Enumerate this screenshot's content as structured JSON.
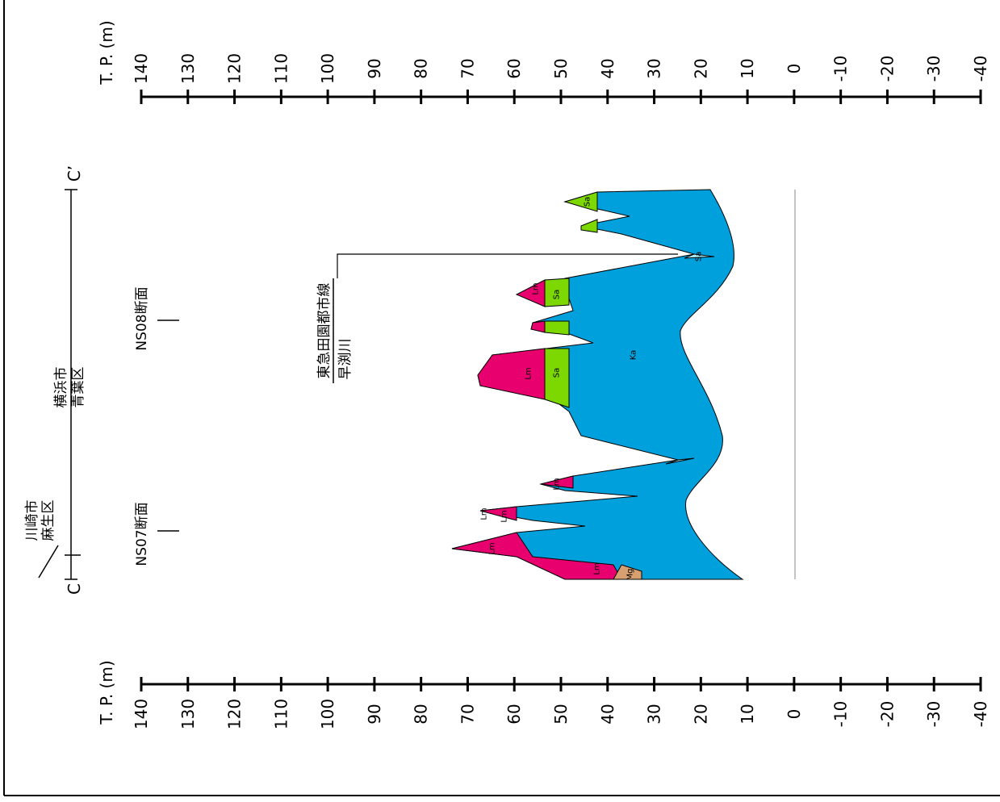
{
  "axis": {
    "label": "T. P. (m)",
    "ticks": [
      140,
      130,
      120,
      110,
      100,
      90,
      80,
      70,
      60,
      50,
      40,
      30,
      20,
      10,
      0,
      -10,
      -20,
      -30,
      -40
    ]
  },
  "section": {
    "start": "C",
    "end": "C’"
  },
  "places": [
    {
      "city": "川崎市",
      "ward": "麻生区"
    },
    {
      "city": "横浜市",
      "ward": "青葉区"
    }
  ],
  "sections": [
    "NS07断面",
    "NS08断面"
  ],
  "features": [
    "東急田園都市線",
    "早渕川"
  ],
  "layer_labels": [
    "Mg",
    "Lm",
    "Lm",
    "Lm",
    "Lm",
    "Lm",
    "Lm",
    "Sa",
    "Ka",
    "Lm",
    "Sa",
    "Sa",
    "Sa"
  ]
}
